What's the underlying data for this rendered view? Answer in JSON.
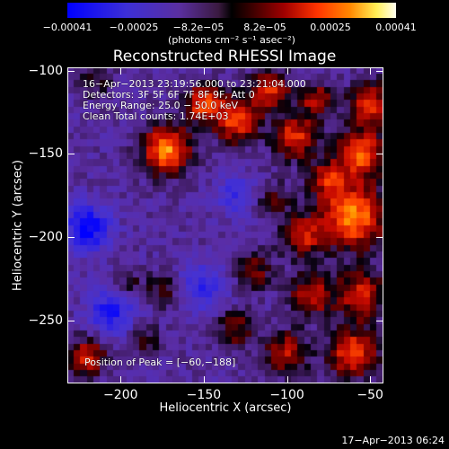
{
  "chart_data": {
    "type": "heatmap",
    "title": "Reconstructed RHESSI Image",
    "xlabel": "Heliocentric X (arcsec)",
    "ylabel": "Heliocentric Y (arcsec)",
    "xlim": [
      -232,
      -42
    ],
    "ylim": [
      -288,
      -98
    ],
    "x_ticks": [
      "−200",
      "−150",
      "−100",
      "−50"
    ],
    "x_tick_values": [
      -200,
      -150,
      -100,
      -50
    ],
    "y_ticks": [
      "−100",
      "−150",
      "−200",
      "−250"
    ],
    "y_tick_values": [
      -100,
      -150,
      -200,
      -250
    ],
    "colorbar": {
      "ticks": [
        "−0.00041",
        "−0.00025",
        "−8.2e−05",
        "8.2e−05",
        "0.00025",
        "0.00041"
      ],
      "tick_values": [
        -0.00041,
        -0.00025,
        -8.2e-05,
        8.2e-05,
        0.00025,
        0.00041
      ],
      "range": [
        -0.00041,
        0.00041
      ],
      "units": "(photons cm⁻² s⁻¹ asec⁻²)"
    },
    "annotations": [
      "16−Apr−2013 23:19:56.000 to 23:21:04.000",
      "Detectors: 3F 5F 6F 7F 8F 9F, Att 0",
      "Energy Range: 25.0 − 50.0 keV",
      "Clean     Total counts: 1.74E+03",
      "Position of Peak = [−60,−188]"
    ],
    "peak": {
      "x": -60,
      "y": -188
    },
    "blobs": [
      {
        "x": -172,
        "y": -148,
        "amp": 1.0,
        "s": 10
      },
      {
        "x": -150,
        "y": -120,
        "amp": 0.8,
        "s": 8
      },
      {
        "x": -130,
        "y": -130,
        "amp": 0.85,
        "s": 9
      },
      {
        "x": -110,
        "y": -112,
        "amp": 0.7,
        "s": 8
      },
      {
        "x": -95,
        "y": -140,
        "amp": 0.75,
        "s": 9
      },
      {
        "x": -82,
        "y": -118,
        "amp": 0.6,
        "s": 7
      },
      {
        "x": -60,
        "y": -188,
        "amp": 1.0,
        "s": 13
      },
      {
        "x": -55,
        "y": -150,
        "amp": 0.85,
        "s": 10
      },
      {
        "x": -50,
        "y": -120,
        "amp": 0.7,
        "s": 9
      },
      {
        "x": -75,
        "y": -165,
        "amp": 0.6,
        "s": 8
      },
      {
        "x": -90,
        "y": -200,
        "amp": 0.6,
        "s": 9
      },
      {
        "x": -85,
        "y": -235,
        "amp": 0.65,
        "s": 9
      },
      {
        "x": -55,
        "y": -235,
        "amp": 0.7,
        "s": 10
      },
      {
        "x": -60,
        "y": -270,
        "amp": 0.8,
        "s": 10
      },
      {
        "x": -100,
        "y": -270,
        "amp": 0.6,
        "s": 9
      },
      {
        "x": -130,
        "y": -255,
        "amp": 0.45,
        "s": 8
      },
      {
        "x": -120,
        "y": -220,
        "amp": 0.45,
        "s": 8
      },
      {
        "x": -220,
        "y": -272,
        "amp": 0.65,
        "s": 8
      },
      {
        "x": -175,
        "y": -232,
        "amp": 0.35,
        "s": 7
      },
      {
        "x": -195,
        "y": -228,
        "amp": 0.3,
        "s": 6
      },
      {
        "x": -185,
        "y": -262,
        "amp": 0.3,
        "s": 7
      },
      {
        "x": -108,
        "y": -178,
        "amp": 0.35,
        "s": 8
      },
      {
        "x": -215,
        "y": -105,
        "amp": 0.3,
        "s": 8
      },
      {
        "x": -220,
        "y": -195,
        "amp": -0.7,
        "s": 10
      },
      {
        "x": -205,
        "y": -245,
        "amp": -0.55,
        "s": 10
      },
      {
        "x": -130,
        "y": -175,
        "amp": -0.4,
        "s": 9
      },
      {
        "x": -150,
        "y": -230,
        "amp": -0.45,
        "s": 10
      }
    ]
  },
  "timestamp": "17−Apr−2013 06:24"
}
